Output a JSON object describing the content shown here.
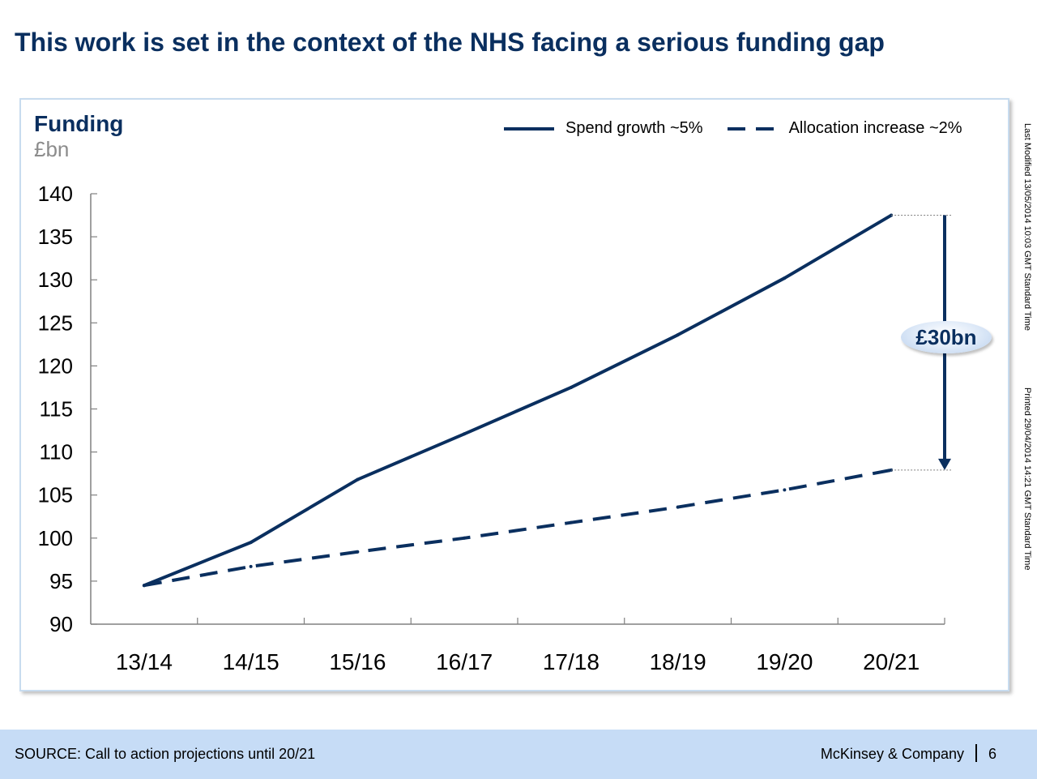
{
  "slide": {
    "title": "This work is set in the context of the NHS facing a serious funding gap",
    "side_modified": "Last Modified 13/05/2014 10:03 GMT Standard Time",
    "side_printed": "Printed 29/04/2014 14:21 GMT Standard Time"
  },
  "footer": {
    "source": "SOURCE: Call to action projections until 20/21",
    "brand": "McKinsey & Company",
    "page": "6"
  },
  "chart_data": {
    "type": "line",
    "title": "Funding",
    "ylabel": "£bn",
    "xlabel": "",
    "categories": [
      "13/14",
      "14/15",
      "15/16",
      "16/17",
      "17/18",
      "18/19",
      "19/20",
      "20/21"
    ],
    "ylim": [
      90,
      140
    ],
    "yticks": [
      90,
      95,
      100,
      105,
      110,
      115,
      120,
      125,
      130,
      135,
      140
    ],
    "series": [
      {
        "name": "Spend growth ~5%",
        "style": "solid",
        "color": "#0a2f5f",
        "values": [
          94.5,
          99.5,
          106.8,
          112.1,
          117.5,
          123.6,
          130.2,
          137.5
        ]
      },
      {
        "name": "Allocation increase ~2%",
        "style": "dashed",
        "color": "#0a2f5f",
        "values": [
          94.5,
          96.7,
          98.4,
          100.0,
          101.8,
          103.6,
          105.6,
          107.9
        ]
      }
    ],
    "annotation": {
      "label": "£30bn",
      "category": "20/21",
      "from": 137.5,
      "to": 107.9
    },
    "legend_position": "top-right",
    "grid": false
  }
}
